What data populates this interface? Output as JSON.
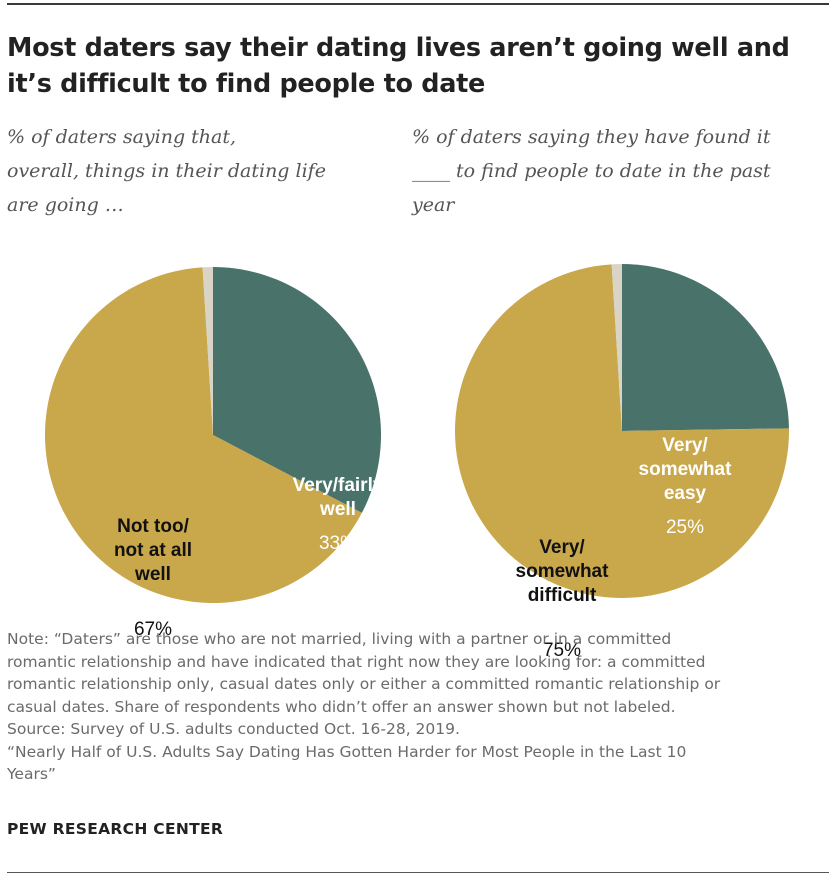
{
  "title": "Most daters say their dating lives aren’t going well and\nit’s difficult to find people to date",
  "colors": {
    "teal": "#49736a",
    "gold": "#c9a74b",
    "no_answer": "#d9d4c6"
  },
  "chart_data": [
    {
      "type": "pie",
      "subtitle": "% of daters saying that,\noverall, things in their dating life\nare going …",
      "slices": [
        {
          "label": "Very/fairly well",
          "value": 33,
          "value_label": "33%",
          "color": "teal",
          "label_lines": [
            "Very/fairly",
            "well"
          ],
          "text_color": "#ffffff"
        },
        {
          "label": "Not too/not at all well",
          "value": 67,
          "value_label": "67%",
          "color": "gold",
          "label_lines": [
            "Not too/",
            "not at all",
            "well"
          ],
          "text_color": "#111111"
        },
        {
          "label": "",
          "value": 1,
          "value_label": "",
          "color": "no_answer",
          "label_lines": [],
          "text_color": ""
        }
      ]
    },
    {
      "type": "pie",
      "subtitle": "% of daters saying they have found it\n____ to find people to date in the past\nyear",
      "slices": [
        {
          "label": "Very/somewhat easy",
          "value": 25,
          "value_label": "25%",
          "color": "teal",
          "label_lines": [
            "Very/",
            "somewhat",
            "easy"
          ],
          "text_color": "#ffffff"
        },
        {
          "label": "Very/somewhat difficult",
          "value": 75,
          "value_label": "75%",
          "color": "gold",
          "label_lines": [
            "Very/",
            "somewhat",
            "difficult"
          ],
          "text_color": "#111111"
        },
        {
          "label": "",
          "value": 1,
          "value_label": "",
          "color": "no_answer",
          "label_lines": [],
          "text_color": ""
        }
      ]
    }
  ],
  "notes": "Note: “Daters” are those who are not married, living with a partner or in a committed\nromantic relationship and have indicated that right now they are looking for: a committed\nromantic relationship only, casual dates only or either a committed romantic relationship or\ncasual dates. Share of respondents who didn’t offer an answer shown but not labeled.\nSource: Survey of U.S. adults conducted Oct. 16-28, 2019.\n“Nearly Half of U.S. Adults Say Dating Has Gotten Harder for Most People in the Last 10\nYears”",
  "source_org": "PEW RESEARCH CENTER"
}
